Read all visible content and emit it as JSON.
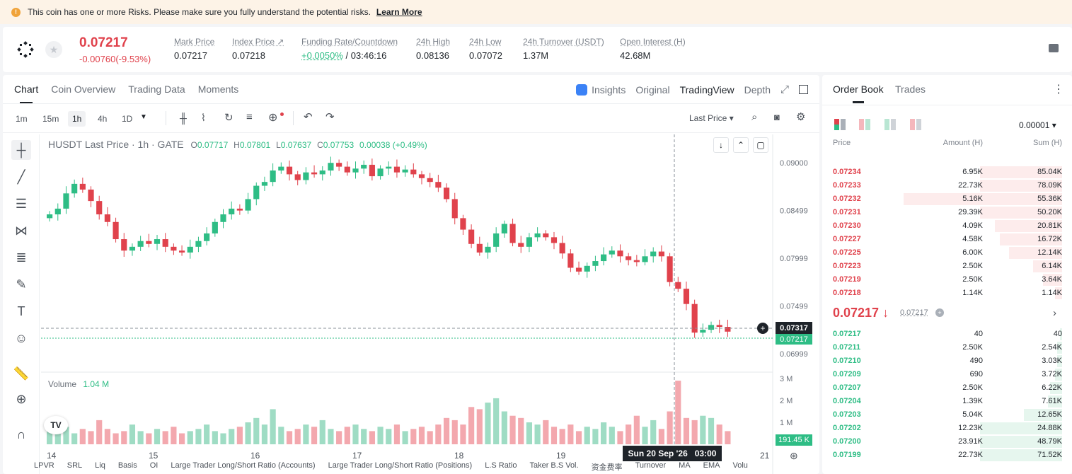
{
  "banner": {
    "text": "This coin has one or more Risks. Please make sure you fully understand the potential risks.",
    "link": "Learn More"
  },
  "ticker": {
    "price": "0.07217",
    "change": "-0.00760(-9.53%)",
    "stats": [
      {
        "label": "Mark Price",
        "value": "0.07217"
      },
      {
        "label": "Index Price ↗",
        "value": "0.07218"
      },
      {
        "label": "Funding Rate/Countdown",
        "value_green": "+0.0050%",
        "value": "/ 03:46:16"
      },
      {
        "label": "24h High",
        "value": "0.08136"
      },
      {
        "label": "24h Low",
        "value": "0.07072"
      },
      {
        "label": "24h Turnover (USDT)",
        "value": "1.37M"
      },
      {
        "label": "Open Interest (H)",
        "value": "42.68M"
      }
    ]
  },
  "chart_tabs": [
    "Chart",
    "Coin Overview",
    "Trading Data",
    "Moments"
  ],
  "view_tabs": [
    "Insights",
    "Original",
    "TradingView",
    "Depth"
  ],
  "timeframes": [
    "1m",
    "15m",
    "1h",
    "4h",
    "1D"
  ],
  "toolbar": {
    "price_type": "Last Price"
  },
  "legend": {
    "symbol": "HUSDT Last Price · 1h · GATE",
    "o": "0.07717",
    "h": "0.07801",
    "l": "0.07637",
    "c": "0.07753",
    "chg": "0.00038 (+0.49%)"
  },
  "volume_legend": {
    "label": "Volume",
    "value": "1.04 M"
  },
  "chart_data": {
    "type": "candlestick",
    "price_axis": [
      "0.09000",
      "0.08499",
      "0.07999",
      "0.07499",
      "0.06999"
    ],
    "volume_axis": [
      "3 M",
      "2 M",
      "1 M"
    ],
    "x_labels": [
      "14",
      "15",
      "16",
      "17",
      "18",
      "19",
      "21"
    ],
    "crosshair_price": "0.07317",
    "last_price": "0.07217",
    "crosshair_time": "Sun 20 Sep '26   03:00",
    "last_volume": "191.45 K",
    "ylim": [
      0.0685,
      0.0915
    ],
    "close_path": [
      0.0846,
      0.0852,
      0.0868,
      0.0878,
      0.0872,
      0.086,
      0.0846,
      0.0838,
      0.082,
      0.0808,
      0.0812,
      0.0818,
      0.0815,
      0.082,
      0.0812,
      0.0808,
      0.0806,
      0.0812,
      0.0818,
      0.0826,
      0.0838,
      0.0846,
      0.0852,
      0.085,
      0.0862,
      0.0876,
      0.088,
      0.0892,
      0.0896,
      0.0888,
      0.0882,
      0.089,
      0.0888,
      0.0892,
      0.09,
      0.0896,
      0.089,
      0.0894,
      0.0898,
      0.0886,
      0.0894,
      0.0896,
      0.089,
      0.0893,
      0.0888,
      0.0884,
      0.088,
      0.0874,
      0.0862,
      0.0842,
      0.083,
      0.0815,
      0.0806,
      0.0812,
      0.0826,
      0.0836,
      0.0816,
      0.0812,
      0.0822,
      0.0826,
      0.0822,
      0.0816,
      0.0805,
      0.079,
      0.0786,
      0.0792,
      0.0797,
      0.0804,
      0.0808,
      0.0802,
      0.0798,
      0.0796,
      0.0802,
      0.0807,
      0.0802,
      0.0775,
      0.0768,
      0.0752,
      0.0722,
      0.0725,
      0.073,
      0.0728,
      0.0723
    ],
    "volume_path": [
      0.6,
      0.5,
      0.8,
      0.5,
      0.7,
      0.6,
      1.1,
      0.7,
      0.5,
      0.6,
      0.9,
      0.6,
      0.5,
      0.7,
      0.6,
      0.8,
      0.5,
      0.6,
      0.7,
      0.9,
      0.6,
      0.5,
      0.7,
      0.8,
      1.0,
      1.2,
      0.9,
      1.6,
      0.8,
      0.6,
      0.7,
      0.9,
      0.8,
      1.1,
      0.7,
      0.6,
      0.8,
      0.9,
      0.7,
      0.6,
      0.8,
      0.7,
      0.9,
      0.6,
      0.7,
      0.8,
      0.6,
      0.9,
      1.2,
      1.1,
      0.9,
      1.7,
      1.6,
      1.9,
      2.1,
      1.5,
      1.3,
      1.2,
      1.0,
      0.9,
      1.1,
      0.8,
      0.7,
      0.9,
      0.6,
      0.8,
      0.7,
      1.0,
      0.8,
      0.6,
      0.9,
      1.3,
      0.8,
      1.1,
      0.7,
      1.5,
      2.9,
      1.2,
      1.1,
      1.3,
      1.2,
      0.9,
      0.6
    ]
  },
  "bottom_tabs": [
    "LPVR",
    "SRL",
    "Liq",
    "Basis",
    "OI",
    "Large Trader Long/Short Ratio (Accounts)",
    "Large Trader Long/Short Ratio (Positions)",
    "L.S Ratio",
    "Taker B.S Vol.",
    "资金费率",
    "Turnover",
    "MA",
    "EMA",
    "Volu"
  ],
  "orderbook": {
    "tabs": [
      "Order Book",
      "Trades"
    ],
    "precision": "0.00001",
    "headers": {
      "price": "Price",
      "amount": "Amount (H)",
      "sum": "Sum (H)"
    },
    "asks": [
      {
        "price": "0.07234",
        "amount": "6.95K",
        "sum": "85.04K",
        "depth": 0.34
      },
      {
        "price": "0.07233",
        "amount": "22.73K",
        "sum": "78.09K",
        "depth": 0.34
      },
      {
        "price": "0.07232",
        "amount": "5.16K",
        "sum": "55.36K",
        "depth": 0.66
      },
      {
        "price": "0.07231",
        "amount": "29.39K",
        "sum": "50.20K",
        "depth": 0.34
      },
      {
        "price": "0.07230",
        "amount": "4.09K",
        "sum": "20.81K",
        "depth": 0.28
      },
      {
        "price": "0.07227",
        "amount": "4.58K",
        "sum": "16.72K",
        "depth": 0.26
      },
      {
        "price": "0.07225",
        "amount": "6.00K",
        "sum": "12.14K",
        "depth": 0.22
      },
      {
        "price": "0.07223",
        "amount": "2.50K",
        "sum": "6.14K",
        "depth": 0.12
      },
      {
        "price": "0.07219",
        "amount": "2.50K",
        "sum": "3.64K",
        "depth": 0.08
      },
      {
        "price": "0.07218",
        "amount": "1.14K",
        "sum": "1.14K",
        "depth": 0.03
      }
    ],
    "mid_price": "0.07217 ↓",
    "mark_price": "0.07217",
    "bids": [
      {
        "price": "0.07217",
        "amount": "40",
        "sum": "40",
        "depth": 0.01
      },
      {
        "price": "0.07211",
        "amount": "2.50K",
        "sum": "2.54K",
        "depth": 0.02
      },
      {
        "price": "0.07210",
        "amount": "490",
        "sum": "3.03K",
        "depth": 0.02
      },
      {
        "price": "0.07209",
        "amount": "690",
        "sum": "3.72K",
        "depth": 0.03
      },
      {
        "price": "0.07207",
        "amount": "2.50K",
        "sum": "6.22K",
        "depth": 0.05
      },
      {
        "price": "0.07204",
        "amount": "1.39K",
        "sum": "7.61K",
        "depth": 0.06
      },
      {
        "price": "0.07203",
        "amount": "5.04K",
        "sum": "12.65K",
        "depth": 0.16
      },
      {
        "price": "0.07202",
        "amount": "12.23K",
        "sum": "24.88K",
        "depth": 0.34
      },
      {
        "price": "0.07200",
        "amount": "23.91K",
        "sum": "48.79K",
        "depth": 0.34
      },
      {
        "price": "0.07199",
        "amount": "22.73K",
        "sum": "71.52K",
        "depth": 0.34
      }
    ]
  }
}
